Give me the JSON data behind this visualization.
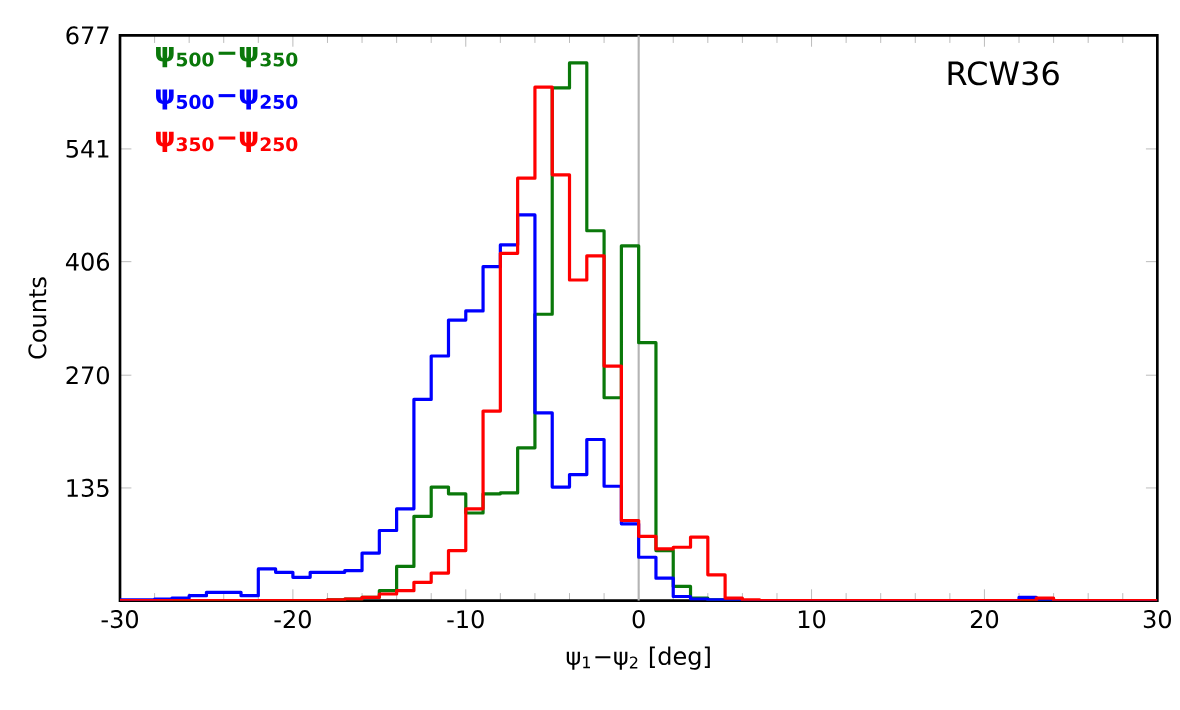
{
  "chart_data": {
    "type": "histogram",
    "xlabel": "ψ$_{1}$−ψ$_{2}$ [deg]",
    "ylabel": "Counts",
    "annotations": [
      "RCW36"
    ],
    "bins": [
      -30,
      -29,
      -28,
      -27,
      -26,
      -25,
      -24,
      -23,
      -22,
      -21,
      -20,
      -19,
      -18,
      -17,
      -16,
      -15,
      -14,
      -13,
      -12,
      -11,
      -10,
      -9,
      -8,
      -7,
      -6,
      -5,
      -4,
      -3,
      -2,
      -1,
      0,
      1,
      2,
      3,
      4,
      5,
      6,
      7,
      8,
      9,
      10,
      11,
      12,
      13,
      14,
      15,
      16,
      17,
      18,
      19,
      20,
      21,
      22,
      23,
      24,
      25,
      26,
      27,
      28,
      29,
      30
    ],
    "series": [
      {
        "name": "ψ$_{500}$−ψ$_{350}$",
        "color": "#0a780a",
        "values": [
          0,
          0,
          0,
          0,
          0,
          0,
          0,
          0,
          0,
          0,
          0,
          0,
          1,
          2,
          4,
          12,
          41,
          101,
          136,
          128,
          105,
          128,
          129,
          183,
          343,
          614,
          644,
          443,
          243,
          425,
          309,
          60,
          17,
          3,
          1,
          0,
          0,
          0,
          0,
          0,
          0,
          0,
          0,
          0,
          0,
          0,
          0,
          0,
          0,
          0,
          0,
          0,
          0,
          0,
          0,
          0,
          0,
          0,
          0,
          0
        ]
      },
      {
        "name": "ψ$_{500}$−ψ$_{250}$",
        "color": "#0000ff",
        "values": [
          1,
          1,
          2,
          3,
          6,
          10,
          10,
          6,
          38,
          34,
          28,
          34,
          34,
          36,
          57,
          84,
          110,
          241,
          293,
          336,
          347,
          400,
          426,
          462,
          225,
          136,
          151,
          193,
          137,
          92,
          52,
          27,
          5,
          2,
          1,
          0,
          0,
          0,
          0,
          0,
          0,
          0,
          0,
          0,
          0,
          0,
          0,
          0,
          0,
          0,
          0,
          0,
          4,
          0,
          0,
          0,
          0,
          0,
          0,
          0
        ]
      },
      {
        "name": "ψ$_{350}$−ψ$_{250}$",
        "color": "#ff0000",
        "values": [
          0,
          0,
          0,
          0,
          0,
          0,
          0,
          0,
          0,
          0,
          0,
          0,
          1,
          2,
          4,
          8,
          12,
          22,
          33,
          60,
          110,
          227,
          416,
          506,
          615,
          510,
          384,
          413,
          281,
          96,
          77,
          62,
          64,
          76,
          31,
          3,
          1,
          0,
          0,
          0,
          0,
          0,
          0,
          0,
          0,
          0,
          0,
          0,
          0,
          0,
          0,
          0,
          0,
          3,
          0,
          0,
          0,
          0,
          0,
          0
        ]
      }
    ],
    "xlim": [
      -30,
      30
    ],
    "ylim": [
      0,
      677
    ],
    "xticks": [
      -30,
      -20,
      -10,
      0,
      10,
      20,
      30
    ],
    "yticks": [
      135,
      270,
      406,
      541,
      677
    ],
    "ref_lines": [
      {
        "axis": "x",
        "value": 0,
        "color": "#b4b4b4"
      }
    ],
    "legend": "top left",
    "grid": false
  }
}
